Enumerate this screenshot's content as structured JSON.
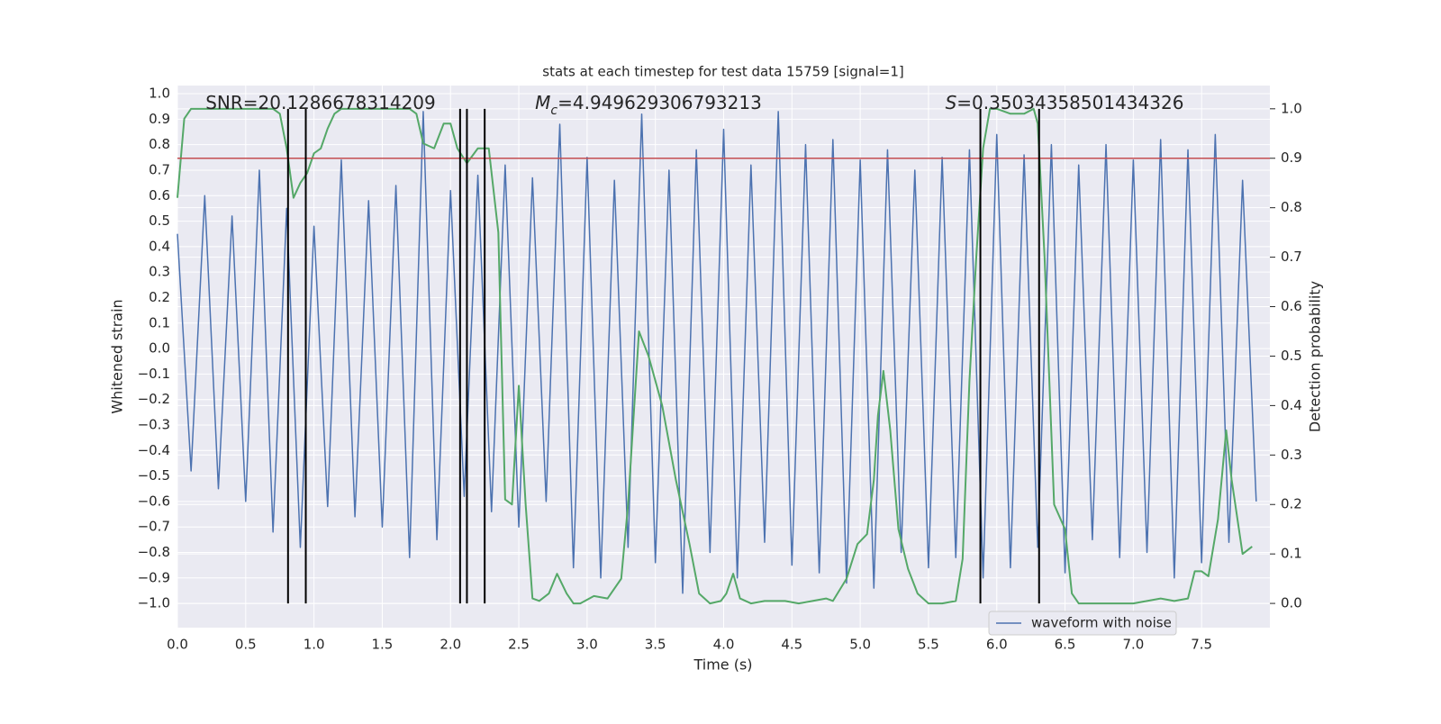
{
  "chart_data": {
    "type": "line",
    "title": "stats at each timestep for test data 15759 [signal=1]",
    "xlabel": "Time (s)",
    "ylabel": "Whitened strain",
    "y2label": "Detection probability",
    "xlim": [
      0,
      8.0
    ],
    "ylim": [
      -1.095,
      1.032
    ],
    "y2lim": [
      -0.049,
      1.047
    ],
    "xticks": [
      {
        "value": 0,
        "label": "0.0"
      },
      0.5,
      {
        "value": 1,
        "label": "1.0"
      },
      1.5,
      {
        "value": 2,
        "label": "2.0"
      },
      2.5,
      {
        "value": 3,
        "label": "3.0"
      },
      3.5,
      {
        "value": 4,
        "label": "4.0"
      },
      4.5,
      {
        "value": 5,
        "label": "5.0"
      },
      5.5,
      {
        "value": 6,
        "label": "6.0"
      },
      6.5,
      {
        "value": 7,
        "label": "7.0"
      },
      7.5
    ],
    "yticks": [
      {
        "value": -1.0,
        "label": "−1.0"
      },
      {
        "value": -0.9,
        "label": "−0.9"
      },
      {
        "value": -0.8,
        "label": "−0.8"
      },
      {
        "value": -0.7,
        "label": "−0.7"
      },
      {
        "value": -0.6,
        "label": "−0.6"
      },
      {
        "value": -0.5,
        "label": "−0.5"
      },
      {
        "value": -0.4,
        "label": "−0.4"
      },
      {
        "value": -0.3,
        "label": "−0.3"
      },
      {
        "value": -0.2,
        "label": "−0.2"
      },
      {
        "value": -0.1,
        "label": "−0.1"
      },
      {
        "value": 0,
        "label": "0.0"
      },
      0.1,
      0.2,
      0.3,
      0.4,
      0.5,
      0.6,
      0.7,
      0.8,
      0.9,
      {
        "value": 1,
        "label": "1.0"
      }
    ],
    "y2ticks": [
      {
        "value": 0,
        "label": "0.0"
      },
      0.1,
      0.2,
      0.3,
      0.4,
      0.5,
      0.6,
      0.7,
      0.8,
      0.9,
      {
        "value": 1,
        "label": "1.0"
      }
    ],
    "grid": true,
    "legend": "lower right",
    "series": [
      {
        "name": "waveform with noise",
        "color": "#4c72b0",
        "x": [
          0,
          0.1,
          0.2,
          0.3,
          0.4,
          0.5,
          0.6,
          0.7,
          0.8,
          0.9,
          1,
          1.1,
          1.2,
          1.3,
          1.4,
          1.5,
          1.6,
          1.7,
          1.8,
          1.9,
          2,
          2.1,
          2.2,
          2.3,
          2.4,
          2.5,
          2.6,
          2.7,
          2.8,
          2.9,
          3,
          3.1,
          3.2,
          3.3,
          3.4,
          3.5,
          3.6,
          3.7,
          3.8,
          3.9,
          4,
          4.1,
          4.2,
          4.3,
          4.4,
          4.5,
          4.6,
          4.7,
          4.8,
          4.9,
          5,
          5.1,
          5.2,
          5.3,
          5.4,
          5.5,
          5.6,
          5.7,
          5.8,
          5.9,
          6,
          6.1,
          6.2,
          6.3,
          6.4,
          6.5,
          6.6,
          6.7,
          6.8,
          6.9,
          7,
          7.1,
          7.2,
          7.3,
          7.4,
          7.5,
          7.6,
          7.7,
          7.8,
          7.9
        ],
        "values": [
          0.45,
          -0.48,
          0.6,
          -0.55,
          0.52,
          -0.6,
          0.7,
          -0.72,
          0.55,
          -0.78,
          0.48,
          -0.62,
          0.74,
          -0.66,
          0.58,
          -0.7,
          0.64,
          -0.82,
          0.93,
          -0.75,
          0.62,
          -0.58,
          0.68,
          -0.64,
          0.72,
          -0.7,
          0.67,
          -0.6,
          0.88,
          -0.86,
          0.75,
          -0.9,
          0.66,
          -0.78,
          0.92,
          -0.84,
          0.7,
          -0.96,
          0.78,
          -0.8,
          0.86,
          -0.9,
          0.72,
          -0.76,
          0.93,
          -0.85,
          0.8,
          -0.88,
          0.82,
          -0.92,
          0.74,
          -0.94,
          0.78,
          -0.8,
          0.7,
          -0.86,
          0.75,
          -0.82,
          0.78,
          -0.9,
          0.84,
          -0.86,
          0.76,
          -0.78,
          0.8,
          -0.88,
          0.72,
          -0.75,
          0.8,
          -0.82,
          0.74,
          -0.8,
          0.82,
          -0.9,
          0.78,
          -0.84,
          0.84,
          -0.76,
          0.66,
          -0.6
        ]
      },
      {
        "color": "#55a868",
        "axis": "y2",
        "x": [
          0.0,
          0.05,
          0.1,
          0.2,
          0.7,
          0.75,
          0.8,
          0.85,
          0.9,
          0.95,
          1.0,
          1.05,
          1.1,
          1.15,
          1.2,
          1.7,
          1.75,
          1.8,
          1.88,
          1.95,
          2.0,
          2.05,
          2.12,
          2.2,
          2.28,
          2.35,
          2.4,
          2.45,
          2.5,
          2.55,
          2.6,
          2.65,
          2.72,
          2.78,
          2.85,
          2.9,
          2.95,
          3.05,
          3.15,
          3.25,
          3.3,
          3.38,
          3.45,
          3.55,
          3.65,
          3.75,
          3.82,
          3.9,
          3.98,
          4.02,
          4.07,
          4.12,
          4.2,
          4.3,
          4.45,
          4.55,
          4.65,
          4.75,
          4.8,
          4.9,
          4.98,
          5.05,
          5.1,
          5.13,
          5.17,
          5.22,
          5.28,
          5.35,
          5.42,
          5.5,
          5.6,
          5.7,
          5.75,
          5.8,
          5.85,
          5.9,
          5.95,
          6.0,
          6.1,
          6.2,
          6.27,
          6.3,
          6.35,
          6.42,
          6.5,
          6.55,
          6.6,
          6.7,
          7.0,
          7.1,
          7.2,
          7.3,
          7.4,
          7.45,
          7.5,
          7.55,
          7.62,
          7.68,
          7.72,
          7.8,
          7.87
        ],
        "values": [
          0.82,
          0.98,
          1.0,
          1.0,
          1.0,
          0.99,
          0.92,
          0.82,
          0.85,
          0.87,
          0.91,
          0.92,
          0.96,
          0.99,
          1.0,
          1.0,
          0.99,
          0.93,
          0.92,
          0.97,
          0.97,
          0.92,
          0.89,
          0.92,
          0.92,
          0.75,
          0.21,
          0.2,
          0.44,
          0.2,
          0.01,
          0.005,
          0.02,
          0.06,
          0.02,
          0.0,
          0.0,
          0.015,
          0.01,
          0.05,
          0.2,
          0.55,
          0.5,
          0.4,
          0.25,
          0.12,
          0.02,
          0.0,
          0.005,
          0.02,
          0.06,
          0.01,
          0.0,
          0.005,
          0.005,
          0.0,
          0.005,
          0.01,
          0.005,
          0.05,
          0.12,
          0.14,
          0.25,
          0.38,
          0.47,
          0.35,
          0.15,
          0.07,
          0.02,
          0.0,
          0.0,
          0.005,
          0.09,
          0.45,
          0.7,
          0.92,
          1.0,
          1.0,
          0.99,
          0.99,
          1.0,
          0.97,
          0.7,
          0.2,
          0.15,
          0.02,
          0.0,
          0.0,
          0.0,
          0.005,
          0.01,
          0.005,
          0.01,
          0.065,
          0.065,
          0.055,
          0.17,
          0.35,
          0.25,
          0.1,
          0.115
        ]
      }
    ],
    "threshold": {
      "value": 0.9,
      "axis": "y2",
      "color": "#c44e52"
    },
    "vlines": {
      "x": [
        0.81,
        0.94,
        2.07,
        2.12,
        2.25,
        5.88,
        6.31
      ],
      "ymin": 0,
      "ymax": 1.0,
      "axis": "y2",
      "color": "#000000"
    },
    "annotations": [
      {
        "text": "SNR=20.1286678314209"
      },
      {
        "symbol": "M",
        "subscript": "c",
        "text": "=4.949629306793213"
      },
      {
        "symbol": "S",
        "text": "=0.35034358501434326"
      }
    ]
  }
}
